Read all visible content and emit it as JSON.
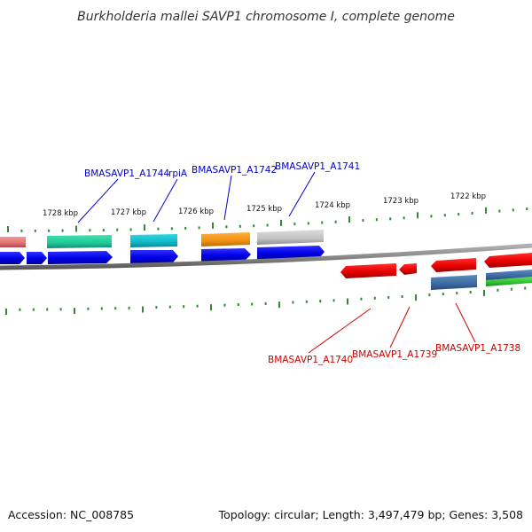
{
  "title": "Burkholderia mallei SAVP1 chromosome I, complete genome",
  "footer": {
    "accession": "Accession: NC_008785",
    "summary": "Topology: circular; Length: 3,497,479 bp; Genes: 3,508"
  },
  "scale_labels": [
    "1728 kbp",
    "1727 kbp",
    "1726 kbp",
    "1725 kbp",
    "1724 kbp",
    "1723 kbp",
    "1722 kbp"
  ],
  "gene_labels_top": [
    "BMASAVP1_A1744",
    "rpiA",
    "BMASAVP1_A1742",
    "BMASAVP1_A1741"
  ],
  "gene_labels_bottom": [
    "BMASAVP1_A1740",
    "BMASAVP1_A1739",
    "BMASAVP1_A1738"
  ],
  "colors": {
    "forward_label": "#0000cc",
    "reverse_label": "#cc0000",
    "tick": "#2e8b2e",
    "backbone": "#888888",
    "cds": "#0000ee",
    "reverse_cds": "#ee0000"
  }
}
